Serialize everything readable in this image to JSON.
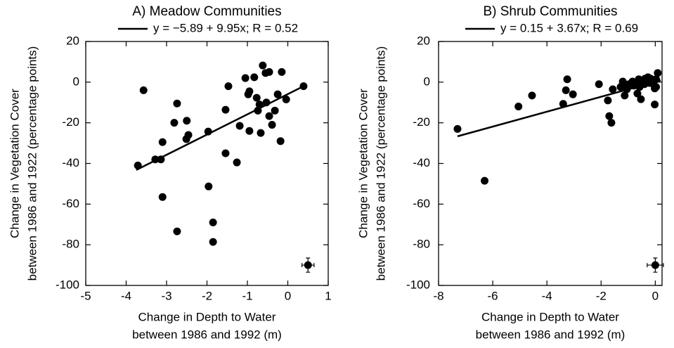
{
  "chart_data": [
    {
      "type": "scatter",
      "title": "A) Meadow Communities",
      "legend": "y = −5.89 + 9.95x; R = 0.52",
      "xlabel": [
        "Change in Depth to Water",
        "between 1986 and 1992 (m)"
      ],
      "ylabel": [
        "Change in Vegetation Cover",
        "between 1986 and 1922 (percentage points)"
      ],
      "xlim": [
        -5,
        1
      ],
      "ylim": [
        -100,
        20
      ],
      "xticks": [
        -5,
        -4,
        -3,
        -2,
        -1,
        0,
        1
      ],
      "yticks": [
        -100,
        -80,
        -60,
        -40,
        -20,
        0,
        20
      ],
      "color": "#000000",
      "x": [
        -3.71,
        -3.57,
        -3.28,
        -3.14,
        -3.1,
        -3.1,
        -2.81,
        -2.74,
        -2.74,
        -2.51,
        -2.5,
        -2.46,
        -1.97,
        -1.96,
        -1.85,
        -1.85,
        -1.54,
        -1.54,
        -1.47,
        -1.26,
        -1.19,
        -1.05,
        -0.98,
        -0.95,
        -0.95,
        -0.83,
        -0.77,
        -0.74,
        -0.7,
        -0.67,
        -0.62,
        -0.55,
        -0.53,
        -0.46,
        -0.46,
        -0.39,
        -0.32,
        -0.25,
        -0.18,
        -0.15,
        -0.04,
        0.39
      ],
      "values": [
        -41,
        -4,
        -38,
        -38,
        -29.5,
        -56.5,
        -20,
        -10.5,
        -73.4,
        -28,
        -19,
        -26,
        -24.3,
        -51.3,
        -69,
        -78.6,
        -35,
        -13.6,
        -2,
        -39.5,
        -21.5,
        2,
        -6,
        -4.5,
        -24,
        2.4,
        -7.7,
        -14,
        -11,
        -25,
        8.2,
        4.5,
        -10,
        5,
        -16.7,
        -21,
        -14,
        -6,
        -29,
        5,
        -8.5,
        -2
      ],
      "fit": {
        "intercept": -5.89,
        "slope": 9.95,
        "x_range": [
          -3.75,
          0.35
        ]
      },
      "error_bar": {
        "x": 0.5,
        "y": -90,
        "xerr": 0.15,
        "yerr": 3.5
      }
    },
    {
      "type": "scatter",
      "title": "B) Shrub Communities",
      "legend": "y = 0.15 + 3.67x; R = 0.69",
      "xlabel": [
        "Change in Depth to Water",
        "between 1986 and 1992 (m)"
      ],
      "ylabel": [
        "Change in Vegetation Cover",
        "between 1986 and 1922 (percentage points)"
      ],
      "xlim": [
        -8,
        0.25
      ],
      "ylim": [
        -100,
        20
      ],
      "xticks": [
        -8,
        -6,
        -4,
        -2,
        0
      ],
      "yticks": [
        -100,
        -80,
        -60,
        -40,
        -20,
        0,
        20
      ],
      "color": "#000000",
      "x": [
        -7.3,
        -6.3,
        -5.05,
        -4.55,
        -3.4,
        -3.3,
        -3.25,
        -3.04,
        -2.08,
        -1.75,
        -1.7,
        -1.62,
        -1.57,
        -1.28,
        -1.2,
        -1.15,
        -1.13,
        -1.05,
        -0.97,
        -0.84,
        -0.79,
        -0.71,
        -0.66,
        -0.61,
        -0.58,
        -0.53,
        -0.51,
        -0.45,
        -0.4,
        -0.38,
        -0.33,
        -0.27,
        -0.22,
        -0.17,
        -0.12,
        -0.07,
        -0.02,
        -0.02,
        0.03,
        0.03,
        0.09
      ],
      "values": [
        -23,
        -48.5,
        -12,
        -6.6,
        -10.7,
        -4,
        1.4,
        -6,
        -1,
        -9,
        -16.7,
        -20,
        -3.5,
        -2.4,
        0.3,
        -1.4,
        -6.6,
        -3.5,
        -1,
        0.3,
        -1.7,
        -0.7,
        -5.6,
        1.4,
        -2.4,
        -8.4,
        0,
        1,
        -1,
        1.7,
        0.3,
        2.4,
        -0.4,
        1.7,
        0.7,
        -1,
        -3.1,
        -11,
        -2.4,
        1.4,
        4.5
      ],
      "fit": {
        "intercept": 0.15,
        "slope": 3.67,
        "x_range": [
          -7.3,
          0.2
        ]
      },
      "error_bar": {
        "x": 0,
        "y": -90,
        "xerr": 0.3,
        "yerr": 3.5
      }
    }
  ]
}
